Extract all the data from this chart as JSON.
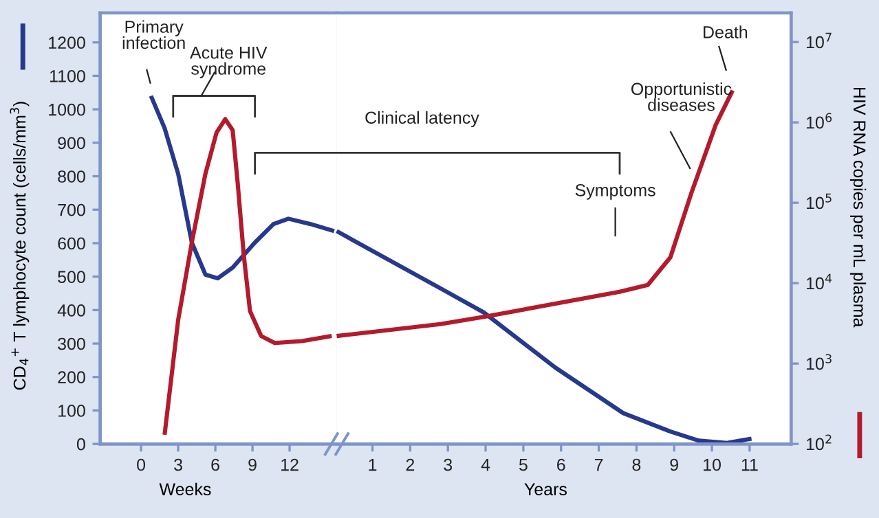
{
  "chart_data": [
    {
      "type": "line",
      "xlabel": "Weeks",
      "ylabel": "CD$_{4}$$^{+}$ T lymphocyte count (cells/mm$^{3}$)",
      "xlim": [
        -3.3,
        15.8
      ],
      "ylim": [
        0,
        1288
      ],
      "y2lim": [
        100,
        23000000
      ],
      "log": "y2",
      "xticks": [
        0,
        3,
        6,
        9,
        12
      ],
      "yticks": [
        0,
        100,
        200,
        300,
        400,
        500,
        600,
        700,
        800,
        900,
        1000,
        1100,
        1200
      ],
      "grid": false,
      "marker": "none",
      "line_style": "solid",
      "series": [
        {
          "color": "#26398c",
          "x": [
            0.8,
            1.9,
            3.0,
            4.1,
            5.2,
            6.2,
            7.4,
            9.2,
            10.7,
            11.9,
            13.7,
            15.6
          ],
          "values": [
            1040,
            944,
            807,
            602,
            506,
            495,
            527,
            602,
            657,
            673,
            657,
            636
          ]
        },
        {
          "color": "#b31b2c",
          "axis": "y2",
          "x": [
            1.9,
            3.0,
            4.1,
            5.2,
            6.1,
            6.8,
            7.4,
            7.8,
            8.3,
            8.8,
            9.7,
            10.8,
            13.0,
            15.4
          ],
          "values": [
            130,
            3500,
            32000,
            230000,
            750000,
            1100000,
            800000,
            180000,
            22000,
            4500,
            2200,
            1800,
            1900,
            2200
          ]
        }
      ],
      "annotations": [
        "Primary\ninfection",
        "Acute HIV\nsyndrome"
      ]
    },
    {
      "type": "line",
      "xlabel": "Years",
      "y2label": "HIV RNA copies per mL plasma",
      "xlim": [
        0.05,
        12.1
      ],
      "ylim": [
        0,
        1288
      ],
      "y2lim": [
        100,
        23000000
      ],
      "log": "y2",
      "xticks": [
        1,
        2,
        3,
        4,
        5,
        6,
        7,
        8,
        9,
        10,
        11
      ],
      "y2ticks": [
        {
          "value": 100,
          "label": "10$^{2}$"
        },
        {
          "value": 1000,
          "label": "10$^{3}$"
        },
        {
          "value": 10000,
          "label": "10$^{4}$"
        },
        {
          "value": 100000,
          "label": "10$^{5}$"
        },
        {
          "value": 1000000,
          "label": "10$^{6}$"
        },
        {
          "value": 10000000,
          "label": "10$^{7}$"
        }
      ],
      "grid": false,
      "marker": "none",
      "line_style": "solid",
      "series": [
        {
          "color": "#26398c",
          "x": [
            0.05,
            2.8,
            3.95,
            5.85,
            7.65,
            8.9,
            9.65,
            10.4,
            11.05
          ],
          "values": [
            636,
            465,
            393,
            228,
            92,
            37,
            10,
            3,
            16
          ]
        },
        {
          "color": "#b31b2c",
          "axis": "y2",
          "x": [
            0.05,
            2.8,
            3.95,
            7.55,
            8.3,
            8.9,
            9.45,
            10.1,
            10.55
          ],
          "values": [
            2200,
            3100,
            3800,
            7800,
            9500,
            21000,
            130000,
            930000,
            2500000
          ]
        }
      ],
      "annotations": [
        "Clinical latency",
        "Symptoms",
        "Opportunistic\ndiseases",
        "Death"
      ]
    }
  ]
}
